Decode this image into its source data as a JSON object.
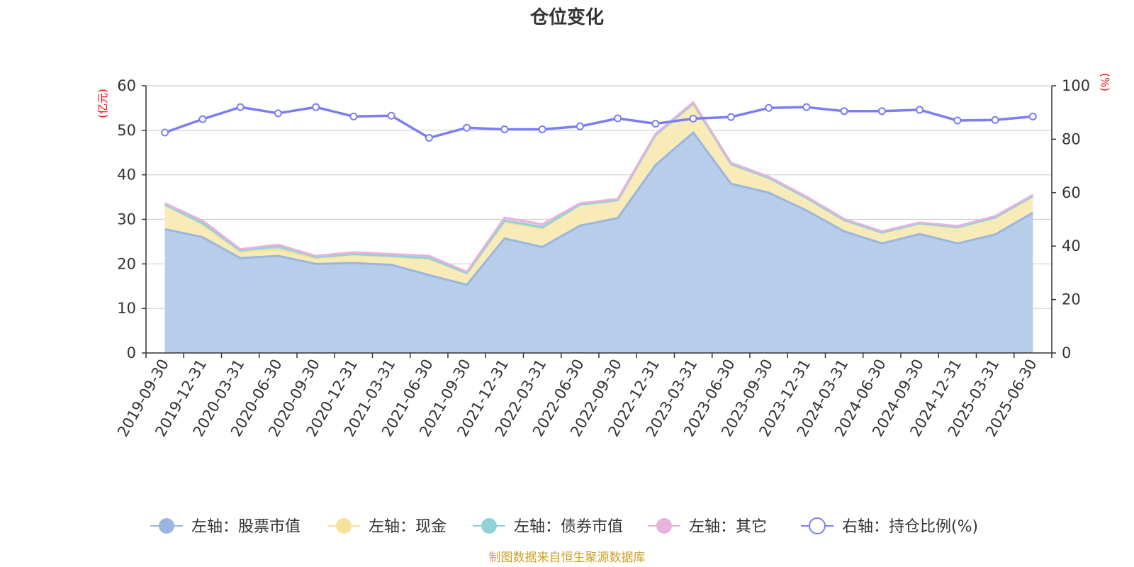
{
  "chart_data": {
    "type": "area",
    "title": "仓位变化",
    "left_axis_unit": "(亿元)",
    "right_axis_unit": "(%)",
    "categories": [
      "2019-09-30",
      "2019-12-31",
      "2020-03-31",
      "2020-06-30",
      "2020-09-30",
      "2020-12-31",
      "2021-03-31",
      "2021-06-30",
      "2021-09-30",
      "2021-12-31",
      "2022-03-31",
      "2022-06-30",
      "2022-09-30",
      "2022-12-31",
      "2023-03-31",
      "2023-06-30",
      "2023-09-30",
      "2023-12-31",
      "2024-03-31",
      "2024-06-30",
      "2024-09-30",
      "2024-12-31",
      "2025-03-31",
      "2025-06-30"
    ],
    "y_left": {
      "min": 0,
      "max": 60,
      "ticks": [
        0,
        10,
        20,
        30,
        40,
        50,
        60
      ]
    },
    "y_right": {
      "min": 0,
      "max": 100,
      "ticks": [
        0,
        20,
        40,
        60,
        80,
        100
      ]
    },
    "grid": true,
    "legend_position": "bottom",
    "series": [
      {
        "name": "左轴：股票市值",
        "axis": "left",
        "kind": "stacked-area",
        "color": "#9ab6e0",
        "fill": "#b7cdea",
        "values": [
          27.8,
          26.0,
          21.3,
          21.8,
          20.0,
          20.2,
          19.8,
          17.5,
          15.3,
          25.7,
          23.8,
          28.6,
          30.3,
          42.2,
          49.5,
          38.0,
          36.0,
          32.0,
          27.3,
          24.6,
          26.7,
          24.6,
          26.6,
          31.5
        ]
      },
      {
        "name": "左轴：现金",
        "axis": "left",
        "kind": "stacked-area",
        "color": "#f5e39a",
        "fill": "#f9ebb8",
        "values": [
          5.5,
          2.8,
          1.4,
          1.4,
          1.2,
          1.8,
          1.8,
          3.6,
          2.6,
          3.7,
          4.1,
          4.7,
          4.0,
          6.7,
          6.5,
          4.4,
          3.3,
          2.8,
          2.5,
          2.4,
          2.4,
          3.6,
          3.8,
          3.7
        ]
      },
      {
        "name": "左轴：债券市值",
        "axis": "left",
        "kind": "stacked-area",
        "color": "#8fd3d6",
        "fill": "#a9dede",
        "values": [
          0,
          0.3,
          0.3,
          0.8,
          0.3,
          0.2,
          0.2,
          0.2,
          0,
          0.3,
          0.3,
          0,
          0,
          0,
          0,
          0,
          0,
          0,
          0,
          0,
          0,
          0,
          0,
          0
        ]
      },
      {
        "name": "左轴：其它",
        "axis": "left",
        "kind": "stacked-area",
        "color": "#e6b3da",
        "fill": "#eccce4",
        "values": [
          0.3,
          0.6,
          0.3,
          0.3,
          0.3,
          0.4,
          0.4,
          0.5,
          0.3,
          0.7,
          0.7,
          0.3,
          0.3,
          0.3,
          0.3,
          0.3,
          0.3,
          0.3,
          0.3,
          0.3,
          0.2,
          0.3,
          0.3,
          0.3
        ]
      },
      {
        "name": "右轴：持仓比例(%)",
        "axis": "right",
        "kind": "line",
        "color": "#7b7ef2",
        "values": [
          82.5,
          87.5,
          92.0,
          89.7,
          92.0,
          88.5,
          88.8,
          80.5,
          84.3,
          83.7,
          83.7,
          84.8,
          87.8,
          85.8,
          87.7,
          88.3,
          91.7,
          92.0,
          90.5,
          90.5,
          91.0,
          87.0,
          87.2,
          88.5
        ]
      }
    ]
  },
  "footer": {
    "source": "制图数据来自恒生聚源数据库"
  }
}
